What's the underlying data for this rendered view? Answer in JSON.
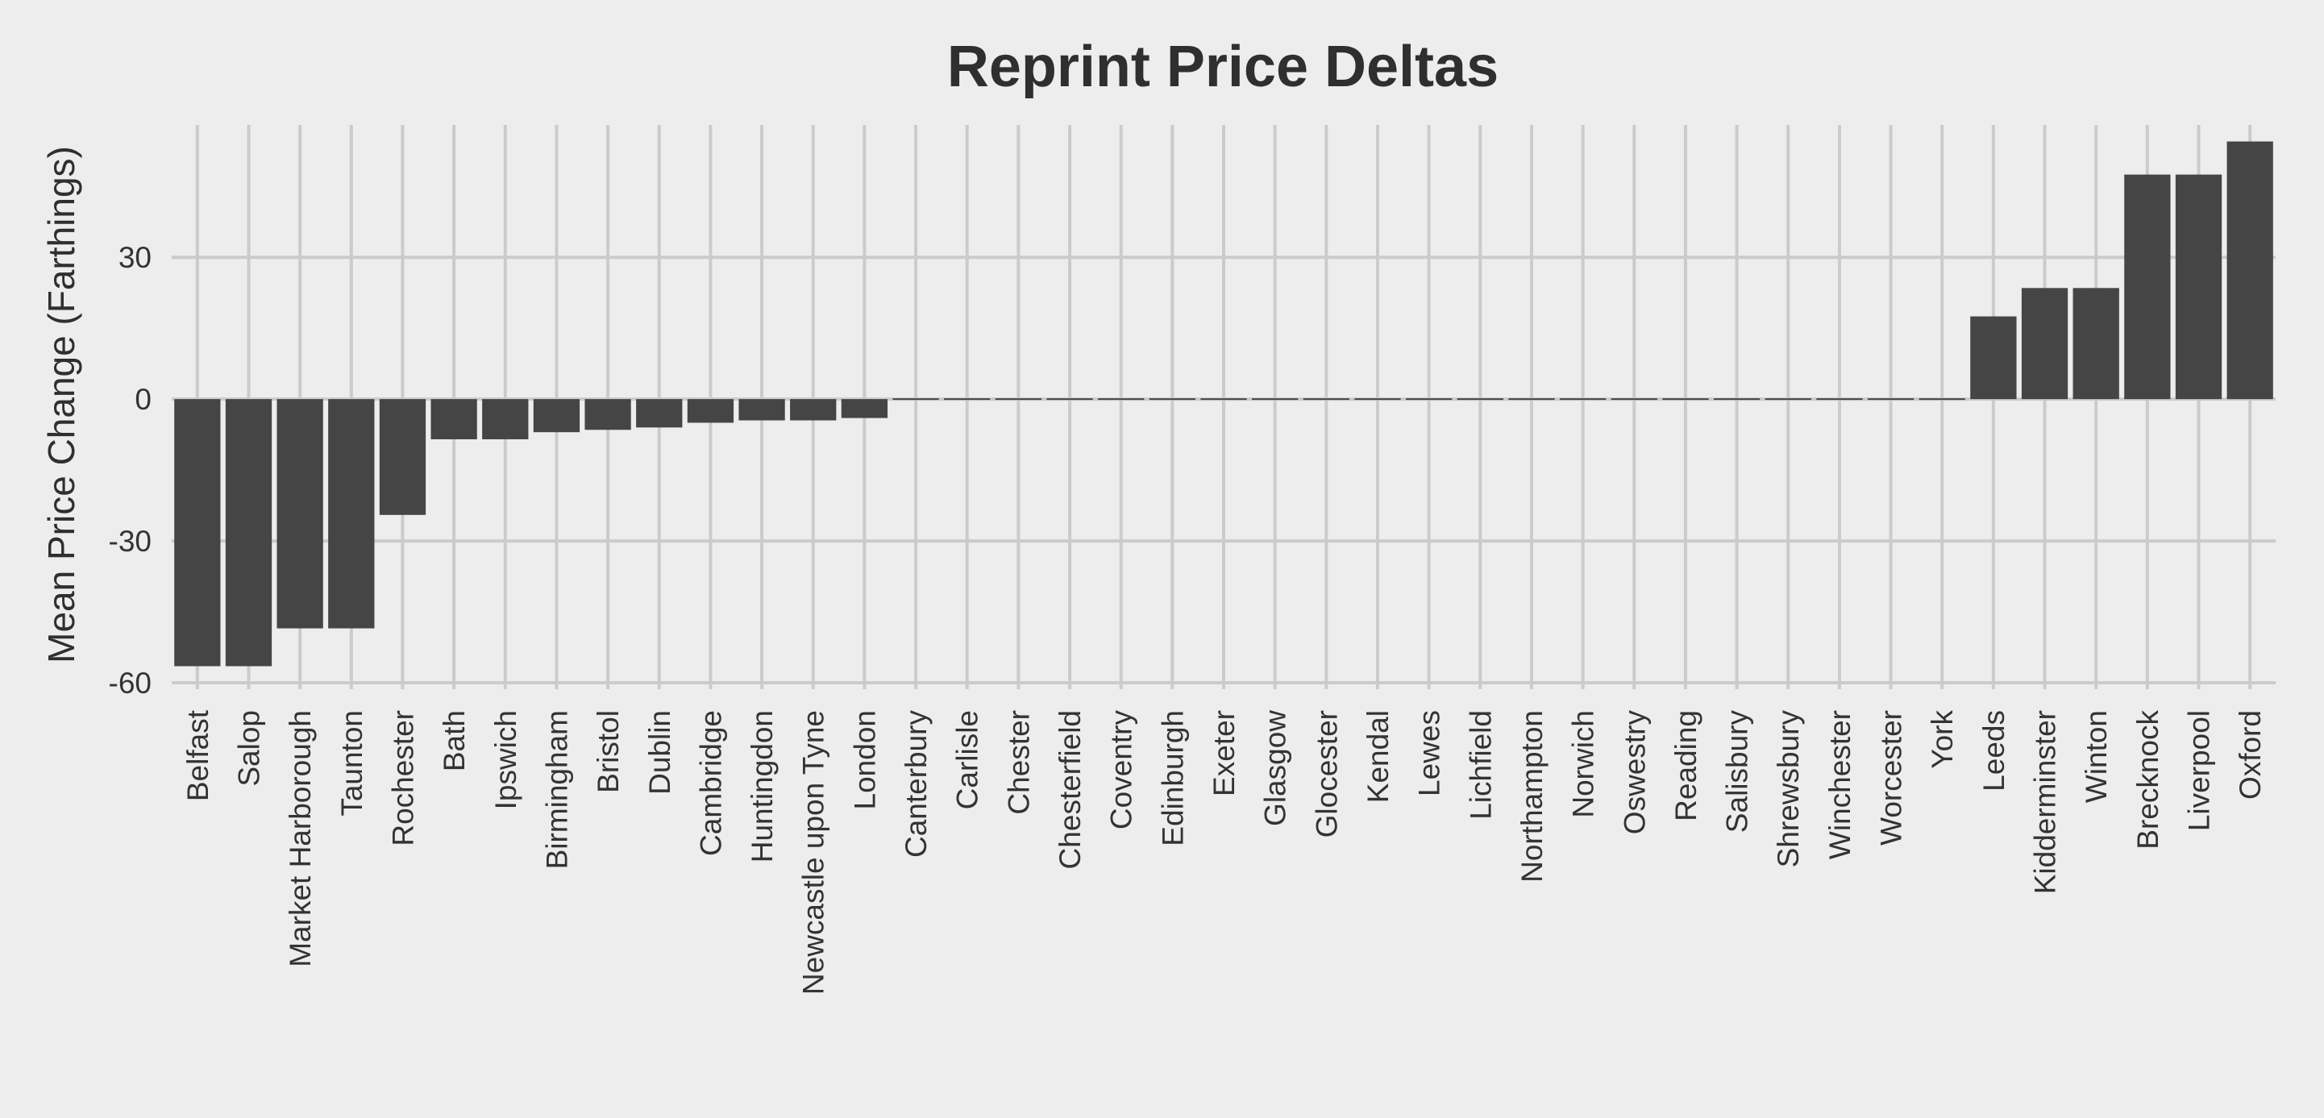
{
  "chart_data": {
    "type": "bar",
    "title": "Reprint Price Deltas",
    "xlabel": "",
    "ylabel": "Mean Price Change (Farthings)",
    "ylim": [
      -60,
      58
    ],
    "yticks": [
      -60,
      -30,
      0,
      30
    ],
    "ytick_labels": [
      "-60",
      "-30",
      "0",
      "30"
    ],
    "grid": true,
    "categories": [
      "Belfast",
      "Salop",
      "Market Harborough",
      "Taunton",
      "Rochester",
      "Bath",
      "Ipswich",
      "Birmingham",
      "Bristol",
      "Dublin",
      "Cambridge",
      "Huntingdon",
      "Newcastle upon Tyne",
      "London",
      "Canterbury",
      "Carlisle",
      "Chester",
      "Chesterfield",
      "Coventry",
      "Edinburgh",
      "Exeter",
      "Glasgow",
      "Glocester",
      "Kendal",
      "Lewes",
      "Lichfield",
      "Northampton",
      "Norwich",
      "Oswestry",
      "Reading",
      "Salisbury",
      "Shrewsbury",
      "Winchester",
      "Worcester",
      "York",
      "Leeds",
      "Kidderminster",
      "Winton",
      "Brecknock",
      "Liverpool",
      "Oxford"
    ],
    "values": [
      -56.5,
      -56.5,
      -48.5,
      -48.5,
      -24.5,
      -8.5,
      -8.5,
      -7,
      -6.5,
      -6,
      -5,
      -4.5,
      -4.5,
      -4,
      0,
      0,
      0,
      0,
      0,
      0,
      0,
      0,
      0,
      0,
      0,
      0,
      0,
      0,
      0,
      0,
      0,
      0,
      0,
      0,
      0,
      17.5,
      23.5,
      23.5,
      47.5,
      47.5,
      54.5
    ],
    "colors": {
      "background": "#ededed",
      "bar": "#454545",
      "grid": "#cbcbcb",
      "text": "#333333"
    }
  }
}
